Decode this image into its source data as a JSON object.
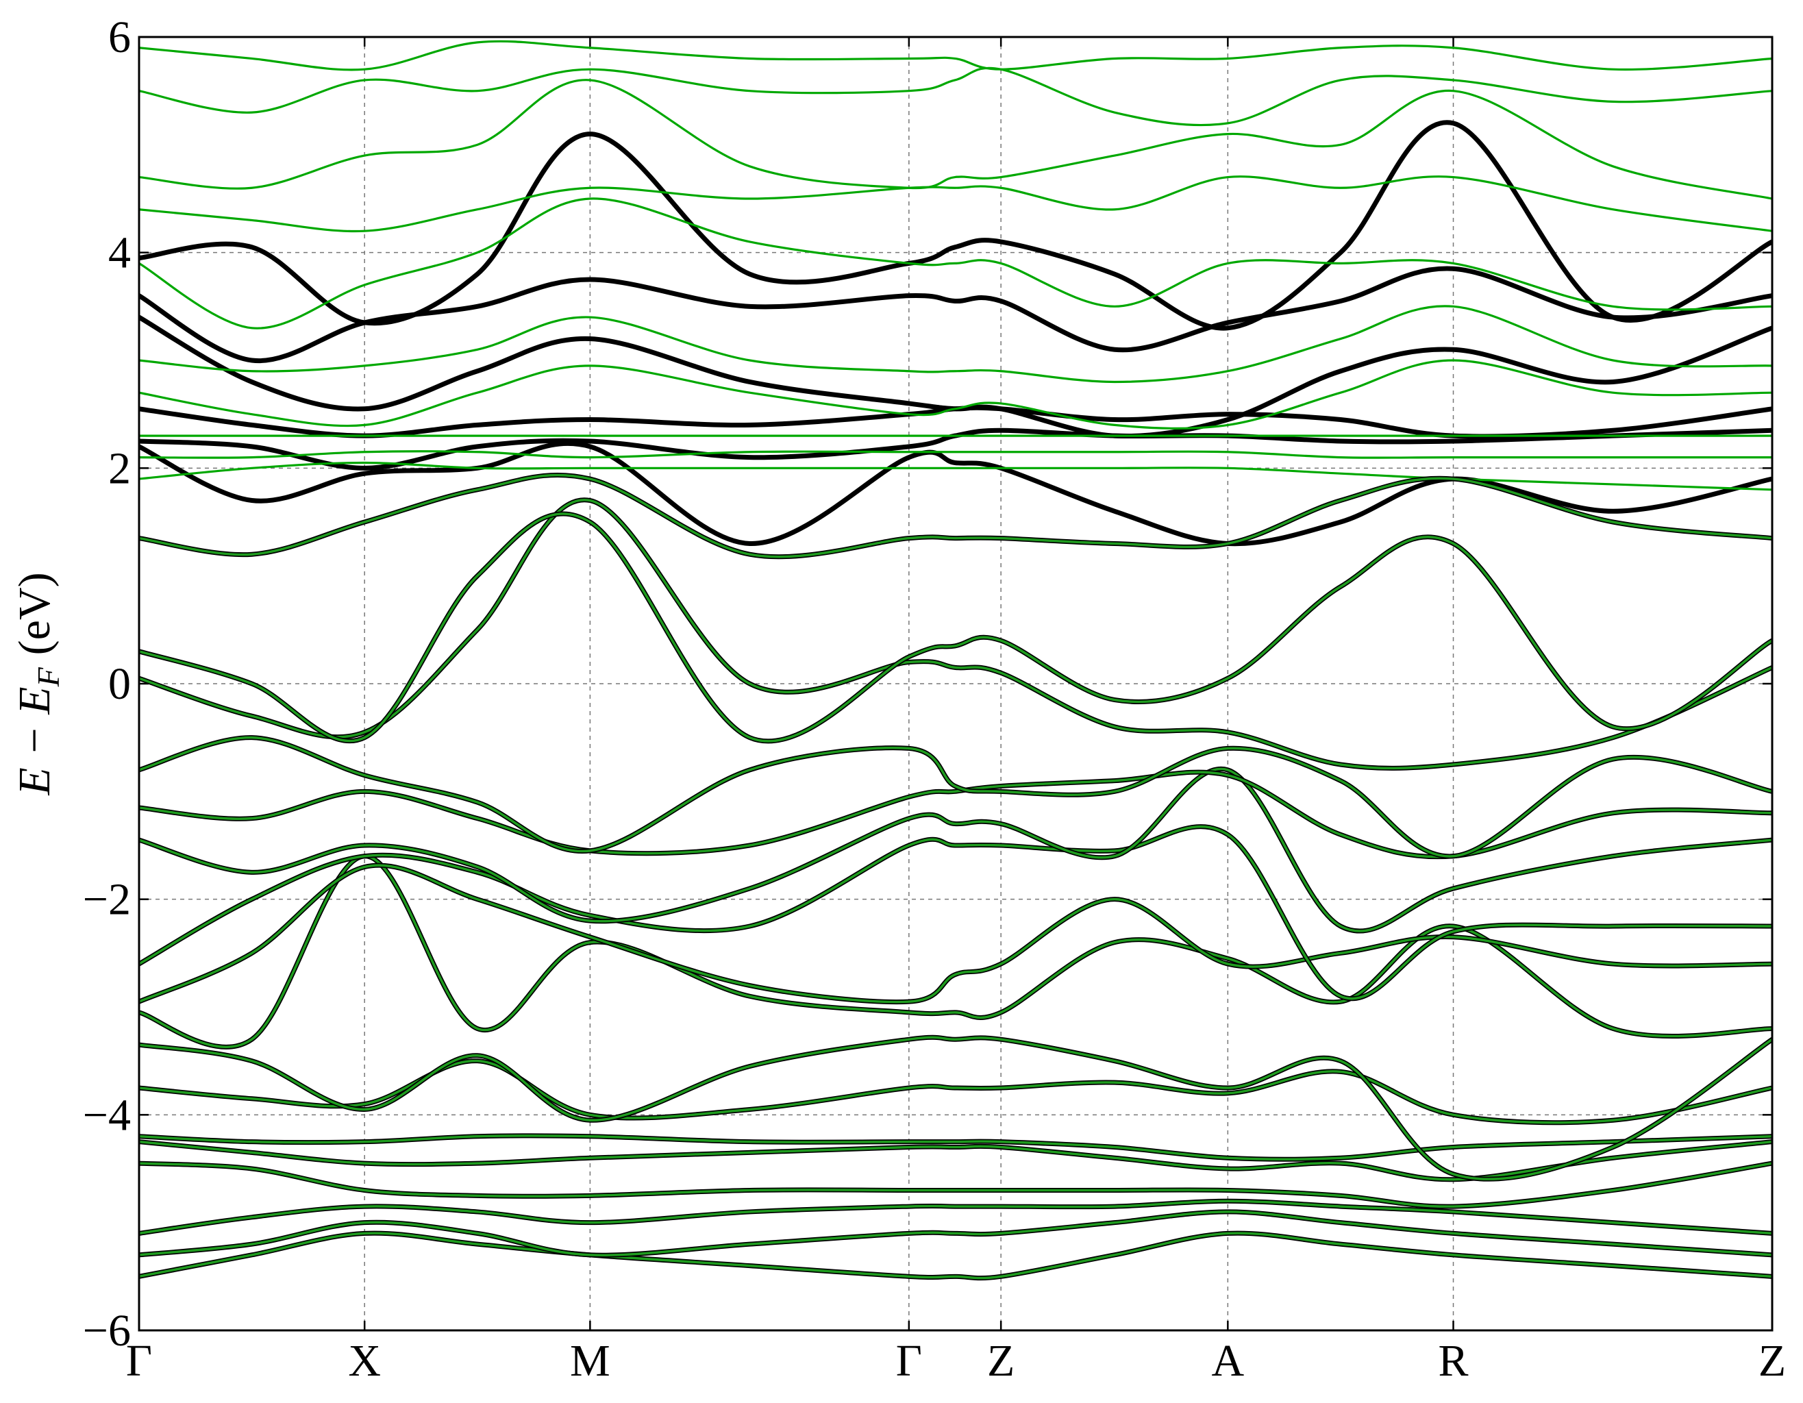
{
  "chart_data": {
    "type": "line",
    "ylabel": {
      "main": "E − E",
      "sub": "F",
      "unit": "(eV)"
    },
    "x": [
      0,
      0.25,
      0.5,
      0.75,
      1.0,
      1.354,
      1.707,
      1.809,
      1.911,
      2.163,
      2.414,
      2.664,
      2.914,
      3.268,
      3.621
    ],
    "xlim": [
      0,
      3.621
    ],
    "xticks": [
      {
        "value": 0,
        "label": "Γ"
      },
      {
        "value": 0.5,
        "label": "X"
      },
      {
        "value": 1.0,
        "label": "M"
      },
      {
        "value": 1.707,
        "label": "Γ"
      },
      {
        "value": 1.911,
        "label": "Z"
      },
      {
        "value": 2.414,
        "label": "A"
      },
      {
        "value": 2.914,
        "label": "R"
      },
      {
        "value": 3.621,
        "label": "Z"
      }
    ],
    "ylim": [
      -6,
      6
    ],
    "yticks": [
      {
        "value": -6,
        "label": "−6"
      },
      {
        "value": -4,
        "label": "−4"
      },
      {
        "value": -2,
        "label": "−2"
      },
      0,
      2,
      4,
      6
    ],
    "grid": true,
    "series": [
      {
        "color": "#1f9c1f",
        "outline": "#000000",
        "values": [
          -5.5,
          -5.3,
          -5.1,
          -5.2,
          -5.3,
          -5.4,
          -5.5,
          -5.5,
          -5.5,
          -5.3,
          -5.1,
          -5.2,
          -5.3,
          -5.4,
          -5.5
        ]
      },
      {
        "color": "#1f9c1f",
        "outline": "#000000",
        "values": [
          -5.3,
          -5.2,
          -5.0,
          -5.1,
          -5.3,
          -5.2,
          -5.1,
          -5.1,
          -5.1,
          -5.0,
          -4.9,
          -5.0,
          -5.1,
          -5.2,
          -5.3
        ]
      },
      {
        "color": "#1f9c1f",
        "outline": "#000000",
        "values": [
          -5.1,
          -4.95,
          -4.85,
          -4.9,
          -5.0,
          -4.9,
          -4.85,
          -4.85,
          -4.85,
          -4.85,
          -4.8,
          -4.85,
          -4.9,
          -5.0,
          -5.1
        ]
      },
      {
        "color": "#1f9c1f",
        "outline": "#000000",
        "values": [
          -4.45,
          -4.5,
          -4.7,
          -4.75,
          -4.75,
          -4.7,
          -4.7,
          -4.7,
          -4.7,
          -4.7,
          -4.7,
          -4.75,
          -4.85,
          -4.7,
          -4.45
        ]
      },
      {
        "color": "#1f9c1f",
        "outline": "#000000",
        "values": [
          -4.25,
          -4.35,
          -4.45,
          -4.45,
          -4.4,
          -4.35,
          -4.3,
          -4.3,
          -4.3,
          -4.4,
          -4.5,
          -4.45,
          -4.6,
          -4.4,
          -4.25
        ]
      },
      {
        "color": "#1f9c1f",
        "outline": "#000000",
        "values": [
          -4.2,
          -4.25,
          -4.25,
          -4.2,
          -4.2,
          -4.25,
          -4.25,
          -4.25,
          -4.25,
          -4.3,
          -4.4,
          -4.4,
          -4.3,
          -4.25,
          -4.2
        ]
      },
      {
        "color": "#1f9c1f",
        "outline": "#000000",
        "values": [
          -3.75,
          -3.85,
          -3.9,
          -3.5,
          -4.0,
          -3.95,
          -3.75,
          -3.75,
          -3.75,
          -3.7,
          -3.8,
          -3.6,
          -4.0,
          -4.05,
          -3.75
        ]
      },
      {
        "color": "#1f9c1f",
        "outline": "#000000",
        "values": [
          -3.35,
          -3.5,
          -3.95,
          -3.45,
          -4.05,
          -3.55,
          -3.3,
          -3.3,
          -3.3,
          -3.5,
          -3.75,
          -3.5,
          -4.55,
          -4.3,
          -3.3
        ]
      },
      {
        "color": "#1f9c1f",
        "outline": "#000000",
        "values": [
          -3.05,
          -3.3,
          -1.6,
          -3.2,
          -2.4,
          -2.9,
          -3.05,
          -3.05,
          -3.05,
          -2.4,
          -2.55,
          -2.95,
          -2.25,
          -3.2,
          -3.2
        ]
      },
      {
        "color": "#1f9c1f",
        "outline": "#000000",
        "values": [
          -2.95,
          -2.5,
          -1.7,
          -2.0,
          -2.35,
          -2.8,
          -2.95,
          -2.7,
          -2.6,
          -2.0,
          -2.6,
          -2.5,
          -2.35,
          -2.6,
          -2.6
        ]
      },
      {
        "color": "#1f9c1f",
        "outline": "#000000",
        "values": [
          -2.6,
          -2.0,
          -1.6,
          -1.75,
          -2.15,
          -2.25,
          -1.5,
          -1.5,
          -1.5,
          -1.55,
          -1.4,
          -2.9,
          -2.3,
          -2.25,
          -2.25
        ]
      },
      {
        "color": "#1f9c1f",
        "outline": "#000000",
        "values": [
          -1.45,
          -1.75,
          -1.5,
          -1.7,
          -2.2,
          -1.9,
          -1.25,
          -1.3,
          -1.3,
          -1.6,
          -0.8,
          -2.25,
          -1.9,
          -1.6,
          -1.45
        ]
      },
      {
        "color": "#1f9c1f",
        "outline": "#000000",
        "values": [
          -1.15,
          -1.25,
          -1.0,
          -1.25,
          -1.55,
          -1.5,
          -1.05,
          -1.0,
          -0.95,
          -0.9,
          -0.85,
          -1.4,
          -1.6,
          -1.2,
          -1.2
        ]
      },
      {
        "color": "#1f9c1f",
        "outline": "#000000",
        "values": [
          -0.8,
          -0.5,
          -0.85,
          -1.1,
          -1.55,
          -0.8,
          -0.6,
          -0.95,
          -1.0,
          -1.0,
          -0.6,
          -0.9,
          -1.6,
          -0.7,
          -1.0
        ]
      },
      {
        "color": "#1f9c1f",
        "outline": "#000000",
        "values": [
          0.05,
          -0.3,
          -0.45,
          0.5,
          1.7,
          0.0,
          0.2,
          0.15,
          0.1,
          -0.4,
          -0.45,
          -0.75,
          -0.75,
          -0.5,
          0.15
        ]
      },
      {
        "color": "#1f9c1f",
        "outline": "#000000",
        "values": [
          0.3,
          0.0,
          -0.5,
          1.0,
          1.5,
          -0.5,
          0.25,
          0.35,
          0.4,
          -0.15,
          0.05,
          0.9,
          1.3,
          -0.4,
          0.4
        ]
      },
      {
        "color": "#1f9c1f",
        "outline": "#000000",
        "values": [
          1.35,
          1.2,
          1.5,
          1.8,
          1.9,
          1.2,
          1.35,
          1.35,
          1.35,
          1.3,
          1.3,
          1.7,
          1.9,
          1.5,
          1.35
        ]
      },
      {
        "color": "#000000",
        "values": [
          2.25,
          2.2,
          2.0,
          2.2,
          2.25,
          2.1,
          2.2,
          2.3,
          2.35,
          2.3,
          2.3,
          2.25,
          2.25,
          2.3,
          2.35
        ]
      },
      {
        "color": "#000000",
        "values": [
          2.55,
          2.4,
          2.3,
          2.4,
          2.45,
          2.4,
          2.5,
          2.55,
          2.55,
          2.45,
          2.5,
          2.45,
          2.3,
          2.35,
          2.55
        ]
      },
      {
        "color": "#000000",
        "values": [
          3.4,
          2.8,
          2.55,
          2.9,
          3.2,
          2.8,
          2.6,
          2.55,
          2.55,
          2.3,
          2.45,
          2.9,
          3.1,
          2.8,
          3.3
        ]
      },
      {
        "color": "#000000",
        "values": [
          3.6,
          3.0,
          3.35,
          3.5,
          3.75,
          3.5,
          3.6,
          3.55,
          3.55,
          3.1,
          3.35,
          3.55,
          3.85,
          3.4,
          3.6
        ]
      },
      {
        "color": "#000000",
        "values": [
          3.95,
          4.05,
          3.35,
          3.8,
          5.1,
          3.8,
          3.9,
          4.05,
          4.1,
          3.8,
          3.3,
          4.0,
          5.2,
          3.4,
          4.1
        ]
      },
      {
        "color": "#000000",
        "values": [
          2.2,
          1.7,
          1.95,
          2.0,
          2.2,
          1.3,
          2.1,
          2.05,
          2.0,
          1.6,
          1.3,
          1.5,
          1.9,
          1.6,
          1.9
        ]
      },
      {
        "color": "#00a800",
        "values": [
          1.9,
          2.0,
          2.05,
          2.0,
          2.0,
          2.0,
          2.0,
          2.0,
          2.0,
          2.0,
          2.0,
          1.95,
          1.9,
          1.85,
          1.8
        ]
      },
      {
        "color": "#00a800",
        "values": [
          2.1,
          2.1,
          2.15,
          2.15,
          2.1,
          2.15,
          2.15,
          2.15,
          2.15,
          2.15,
          2.15,
          2.1,
          2.1,
          2.1,
          2.1
        ]
      },
      {
        "color": "#00a800",
        "values": [
          2.3,
          2.3,
          2.3,
          2.3,
          2.3,
          2.3,
          2.3,
          2.3,
          2.3,
          2.3,
          2.3,
          2.3,
          2.3,
          2.3,
          2.3
        ]
      },
      {
        "color": "#00a800",
        "values": [
          2.7,
          2.5,
          2.4,
          2.7,
          2.95,
          2.7,
          2.5,
          2.55,
          2.6,
          2.4,
          2.4,
          2.7,
          3.0,
          2.7,
          2.7
        ]
      },
      {
        "color": "#00a800",
        "values": [
          3.0,
          2.9,
          2.95,
          3.1,
          3.4,
          3.0,
          2.9,
          2.9,
          2.9,
          2.8,
          2.9,
          3.2,
          3.5,
          3.0,
          2.95
        ]
      },
      {
        "color": "#00a800",
        "values": [
          3.9,
          3.3,
          3.7,
          4.0,
          4.5,
          4.1,
          3.9,
          3.9,
          3.9,
          3.5,
          3.9,
          3.9,
          3.9,
          3.5,
          3.5
        ]
      },
      {
        "color": "#00a800",
        "values": [
          4.4,
          4.3,
          4.2,
          4.4,
          4.6,
          4.5,
          4.6,
          4.6,
          4.6,
          4.4,
          4.7,
          4.6,
          4.7,
          4.4,
          4.2
        ]
      },
      {
        "color": "#00a800",
        "values": [
          4.7,
          4.6,
          4.9,
          5.0,
          5.6,
          4.8,
          4.6,
          4.7,
          4.7,
          4.9,
          5.1,
          5.0,
          5.5,
          4.8,
          4.5
        ]
      },
      {
        "color": "#00a800",
        "values": [
          5.5,
          5.3,
          5.6,
          5.5,
          5.7,
          5.5,
          5.5,
          5.6,
          5.7,
          5.3,
          5.2,
          5.6,
          5.6,
          5.4,
          5.5
        ]
      },
      {
        "color": "#00a800",
        "values": [
          5.9,
          5.8,
          5.7,
          5.95,
          5.9,
          5.8,
          5.8,
          5.8,
          5.7,
          5.8,
          5.8,
          5.9,
          5.9,
          5.7,
          5.8
        ]
      }
    ]
  }
}
